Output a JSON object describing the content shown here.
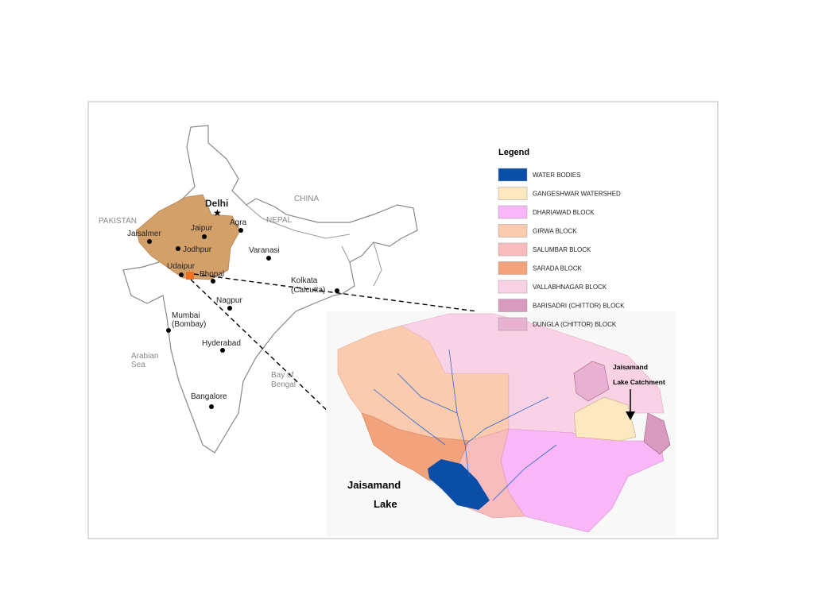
{
  "india_map": {
    "countries": [
      "PAKISTAN",
      "CHINA",
      "NEPAL"
    ],
    "seas": [
      [
        "Arabian",
        "Sea"
      ],
      [
        "Bay of",
        "Bengal"
      ]
    ],
    "capital": "Delhi",
    "cities": [
      "Agra",
      "Jaisalmer",
      "Jaipur",
      "Jodhpur",
      "Varanasi",
      "Udaipur",
      "Bhopal",
      "Kolkata",
      "(Calcutta)",
      "Nagpur",
      "Mumbai",
      "(Bombay)",
      "Hyderabad",
      "Bangalore"
    ]
  },
  "legend": {
    "title": "Legend",
    "items": [
      {
        "label": "WATER BODIES",
        "color": "#0a4ea8"
      },
      {
        "label": "GANGESHWAR WATERSHED",
        "color": "#fde9c1"
      },
      {
        "label": "DHARIAWAD  BLOCK",
        "color": "#f9b7f8"
      },
      {
        "label": "GIRWA  BLOCK",
        "color": "#facbae"
      },
      {
        "label": "SALUMBAR BLOCK",
        "color": "#f8bcbf"
      },
      {
        "label": "SARADA  BLOCK",
        "color": "#f2a37c"
      },
      {
        "label": "VALLABHNAGAR  BLOCK",
        "color": "#fad2e6"
      },
      {
        "label": "BARISADRI (CHITTOR) BLOCK",
        "color": "#d89bbf"
      },
      {
        "label": "DUNGLA (CHITTOR)  BLOCK",
        "color": "#e8b1d2"
      }
    ]
  },
  "annotations": {
    "catchment": [
      "Jaisamand",
      "Lake Catchment"
    ],
    "lake": [
      "Jaisamand",
      "Lake"
    ]
  }
}
